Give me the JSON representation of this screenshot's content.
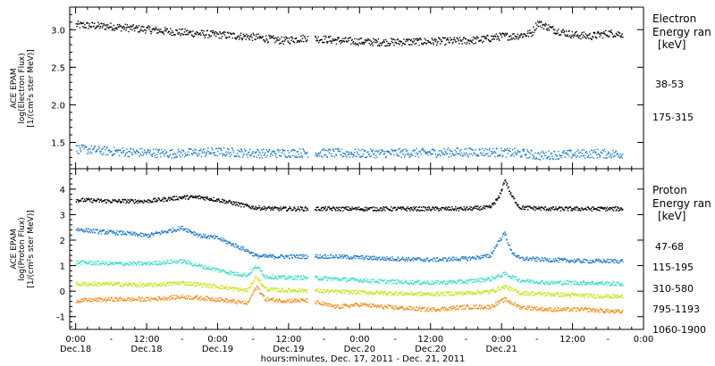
{
  "chart_data": [
    {
      "type": "scatter",
      "panel": "electron",
      "ylabel_lines": [
        "ACE EPAM",
        "log(Electron Flux)",
        "[1/(cm²s ster MeV)]"
      ],
      "ylim": [
        1.15,
        3.3
      ],
      "yticks": [
        1.5,
        2.0,
        2.5,
        3.0
      ],
      "ytick_labels": [
        "1.5",
        "2.0",
        "2.5",
        "3.0"
      ],
      "legend_title_lines": [
        "Electron",
        "Energy ran",
        "[keV]"
      ],
      "series": [
        {
          "name": "38-53",
          "color": "#000000",
          "x_hours": [
            0,
            6,
            12,
            18,
            24,
            30,
            35,
            39,
            45,
            51,
            60,
            66,
            69,
            72,
            74,
            77,
            78,
            79.5,
            81,
            84,
            87,
            90,
            92.5
          ],
          "values": [
            3.07,
            3.05,
            3.01,
            2.97,
            2.94,
            2.91,
            2.86,
            2.9,
            2.86,
            2.84,
            2.85,
            2.86,
            2.88,
            2.92,
            2.92,
            2.96,
            3.1,
            3.05,
            3.0,
            2.94,
            2.92,
            2.96,
            2.95
          ]
        },
        {
          "name": "175-315",
          "color": "#1f78c8",
          "x_hours": [
            0,
            8,
            16,
            24,
            32,
            39,
            48,
            60,
            70,
            76,
            78,
            80,
            84,
            88,
            92.5
          ],
          "values": [
            1.42,
            1.38,
            1.36,
            1.38,
            1.36,
            1.37,
            1.36,
            1.37,
            1.38,
            1.36,
            1.33,
            1.34,
            1.35,
            1.36,
            1.35
          ]
        }
      ]
    },
    {
      "type": "scatter",
      "panel": "proton",
      "ylabel_lines": [
        "ACE EPAM",
        "log(Proton Flux)",
        "[1/(cm²s ster MeV)]"
      ],
      "ylim": [
        -1.5,
        4.8
      ],
      "yticks": [
        -1,
        0,
        1,
        2,
        3,
        4
      ],
      "ytick_labels": [
        "-1",
        "0",
        "1",
        "2",
        "3",
        "4"
      ],
      "legend_title_lines": [
        "Proton",
        "Energy ran",
        "[keV]"
      ],
      "series": [
        {
          "name": "47-68",
          "color": "#000000",
          "x_hours": [
            0,
            6,
            12,
            18,
            21,
            24,
            28,
            30,
            34,
            39,
            44,
            48,
            55,
            60,
            66,
            70,
            71.5,
            72.5,
            73.5,
            75,
            80,
            86,
            92.5
          ],
          "values": [
            3.6,
            3.55,
            3.55,
            3.7,
            3.7,
            3.6,
            3.4,
            3.3,
            3.25,
            3.25,
            3.25,
            3.25,
            3.25,
            3.25,
            3.25,
            3.3,
            3.7,
            4.4,
            3.8,
            3.3,
            3.25,
            3.25,
            3.25
          ]
        },
        {
          "name": "115-195",
          "color": "#1f78c8",
          "x_hours": [
            0,
            4,
            8,
            12,
            16,
            18,
            21,
            24,
            27,
            29,
            30.5,
            32,
            35,
            39,
            44,
            52,
            60,
            66,
            70,
            71.5,
            72.5,
            73.5,
            75,
            80,
            86,
            92.5
          ],
          "values": [
            2.45,
            2.35,
            2.3,
            2.2,
            2.4,
            2.5,
            2.2,
            2.1,
            1.8,
            1.6,
            1.4,
            1.38,
            1.38,
            1.38,
            1.38,
            1.3,
            1.25,
            1.3,
            1.4,
            2.0,
            2.3,
            1.6,
            1.3,
            1.25,
            1.2,
            1.2
          ]
        },
        {
          "name": "310-580",
          "color": "#3fd9c9",
          "x_hours": [
            0,
            6,
            12,
            18,
            21,
            24,
            27,
            29,
            30.5,
            32,
            35,
            39,
            44,
            52,
            60,
            66,
            70,
            72.5,
            75,
            80,
            86,
            92.5
          ],
          "values": [
            1.15,
            1.1,
            1.1,
            1.2,
            1.0,
            0.85,
            0.7,
            0.65,
            1.0,
            0.6,
            0.55,
            0.55,
            0.5,
            0.4,
            0.35,
            0.4,
            0.5,
            0.7,
            0.45,
            0.35,
            0.35,
            0.3
          ]
        },
        {
          "name": "795-1193",
          "color": "#c6e21c",
          "x_hours": [
            0,
            6,
            12,
            18,
            24,
            27,
            29,
            30.5,
            32,
            35,
            39,
            44,
            52,
            60,
            66,
            70,
            72.5,
            75,
            80,
            86,
            92.5
          ],
          "values": [
            0.3,
            0.3,
            0.25,
            0.35,
            0.2,
            0.1,
            0.05,
            0.6,
            0.1,
            0.05,
            0.05,
            0.0,
            -0.05,
            -0.1,
            -0.05,
            0.0,
            0.2,
            -0.05,
            -0.1,
            -0.15,
            -0.2
          ]
        },
        {
          "name": "1060-1900",
          "color": "#f08c1e",
          "x_hours": [
            0,
            6,
            12,
            18,
            24,
            27,
            29,
            30.5,
            32,
            35,
            39,
            44,
            48,
            52,
            60,
            66,
            70,
            72.5,
            75,
            80,
            86,
            92.5
          ],
          "values": [
            -0.35,
            -0.3,
            -0.3,
            -0.2,
            -0.3,
            -0.4,
            -0.45,
            0.2,
            -0.3,
            -0.35,
            -0.35,
            -0.6,
            -0.5,
            -0.6,
            -0.7,
            -0.6,
            -0.6,
            -0.3,
            -0.6,
            -0.7,
            -0.7,
            -0.8
          ]
        }
      ]
    }
  ],
  "x_axis": {
    "range_hours": [
      -1,
      96
    ],
    "tick_hours": [
      0,
      12,
      24,
      36,
      48,
      60,
      72,
      84
    ],
    "tick_time_labels": [
      "0:00",
      "12:00",
      "0:00",
      "12:00",
      "0:00",
      "12:00",
      "0:00",
      "12:00",
      "0:00"
    ],
    "tick_date_labels": [
      "Dec.18",
      "Dec.18",
      "Dec.19",
      "Dec.19",
      "Dec.20",
      "Dec.20",
      "Dec.21"
    ],
    "major_tick_hours": [
      0,
      12,
      24,
      36,
      48,
      60,
      72,
      84,
      96
    ],
    "label_hours": [
      0,
      12,
      24,
      36,
      48,
      60,
      72
    ],
    "data_gap_hours": [
      39.5,
      40.3
    ],
    "xlabel": "hours:minutes, Dec. 17, 2011 - Dec. 21, 2011"
  }
}
